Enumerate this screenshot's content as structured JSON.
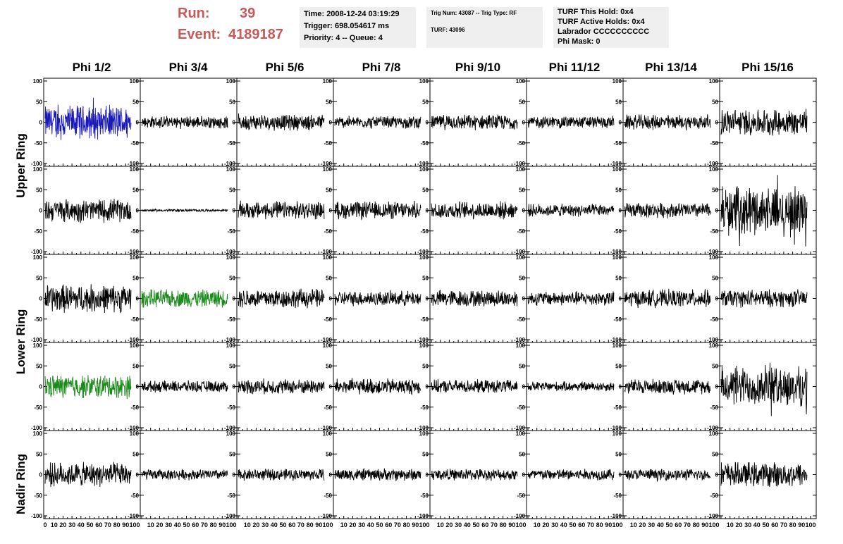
{
  "header": {
    "run_label": "Run:",
    "run_value": "39",
    "event_label": "Event:",
    "event_value": "4189187",
    "box1": [
      "Time: 2008-12-24 03:19:29",
      "Trigger: 698.054617 ms",
      "Priority: 4 -- Queue: 4"
    ],
    "box2": [
      "Trig Num: 43087 -- Trig Type: RF",
      "TURF: 43096"
    ],
    "box3": [
      "TURF This Hold: 0x4",
      "TURF Active Holds: 0x4",
      "Labrador CCCCCCCCCC",
      "Phi Mask: 0"
    ]
  },
  "chart_data": {
    "type": "line",
    "columns": [
      "Phi 1/2",
      "Phi 3/4",
      "Phi 5/6",
      "Phi 7/8",
      "Phi 9/10",
      "Phi 11/12",
      "Phi 13/14",
      "Phi 15/16"
    ],
    "row_labels": [
      "Upper Ring",
      "Lower Ring",
      "Nadir Ring"
    ],
    "rows": 5,
    "ylim": [
      -100,
      100
    ],
    "xlim": [
      0,
      100
    ],
    "y_ticks": [
      "100",
      "50",
      "0",
      "-50",
      "-100"
    ],
    "x_ticks": [
      "0",
      "10",
      "20",
      "30",
      "40",
      "50",
      "60",
      "70",
      "80",
      "90",
      "100"
    ],
    "colors": {
      "default": "#000000",
      "blue": "#1a1ab8",
      "green": "#1a8a1a"
    },
    "panels": [
      [
        {
          "amp": 38,
          "color": "blue"
        },
        {
          "amp": 14,
          "color": "default"
        },
        {
          "amp": 18,
          "color": "default"
        },
        {
          "amp": 14,
          "color": "default"
        },
        {
          "amp": 17,
          "color": "default"
        },
        {
          "amp": 14,
          "color": "default"
        },
        {
          "amp": 17,
          "color": "default"
        },
        {
          "amp": 30,
          "color": "default"
        }
      ],
      [
        {
          "amp": 26,
          "color": "default"
        },
        {
          "amp": 3,
          "color": "default"
        },
        {
          "amp": 20,
          "color": "default"
        },
        {
          "amp": 20,
          "color": "default"
        },
        {
          "amp": 20,
          "color": "default"
        },
        {
          "amp": 14,
          "color": "default"
        },
        {
          "amp": 17,
          "color": "default"
        },
        {
          "amp": 52,
          "color": "default"
        }
      ],
      [
        {
          "amp": 32,
          "color": "default"
        },
        {
          "amp": 20,
          "color": "green"
        },
        {
          "amp": 22,
          "color": "default"
        },
        {
          "amp": 17,
          "color": "default"
        },
        {
          "amp": 19,
          "color": "default"
        },
        {
          "amp": 16,
          "color": "default"
        },
        {
          "amp": 20,
          "color": "default"
        },
        {
          "amp": 20,
          "color": "default"
        }
      ],
      [
        {
          "amp": 27,
          "color": "green"
        },
        {
          "amp": 13,
          "color": "default"
        },
        {
          "amp": 17,
          "color": "default"
        },
        {
          "amp": 18,
          "color": "default"
        },
        {
          "amp": 15,
          "color": "default"
        },
        {
          "amp": 11,
          "color": "default"
        },
        {
          "amp": 17,
          "color": "default"
        },
        {
          "amp": 44,
          "color": "default"
        }
      ],
      [
        {
          "amp": 27,
          "color": "default"
        },
        {
          "amp": 12,
          "color": "default"
        },
        {
          "amp": 13,
          "color": "default"
        },
        {
          "amp": 14,
          "color": "default"
        },
        {
          "amp": 13,
          "color": "default"
        },
        {
          "amp": 13,
          "color": "default"
        },
        {
          "amp": 13,
          "color": "default"
        },
        {
          "amp": 28,
          "color": "default"
        }
      ]
    ]
  }
}
